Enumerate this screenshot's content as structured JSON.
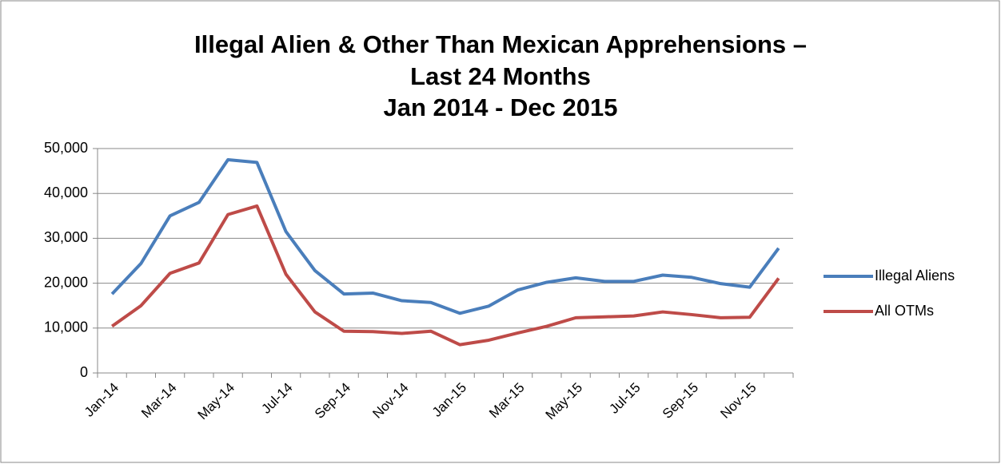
{
  "chart_data": {
    "type": "line",
    "title": [
      "Illegal Alien & Other Than Mexican Apprehensions –",
      "Last 24 Months",
      "Jan 2014 - Dec 2015"
    ],
    "categories": [
      "Jan-14",
      null,
      "Mar-14",
      null,
      "May-14",
      null,
      "Jul-14",
      null,
      "Sep-14",
      null,
      "Nov-14",
      null,
      "Jan-15",
      null,
      "Mar-15",
      null,
      "May-15",
      null,
      "Jul-15",
      null,
      "Sep-15",
      null,
      "Nov-15",
      null
    ],
    "series": [
      {
        "name": "Illegal Aliens",
        "color": "#4a7ebb",
        "values": [
          17600,
          24400,
          35000,
          38000,
          47500,
          46900,
          31500,
          22800,
          17600,
          17800,
          16100,
          15700,
          13300,
          14900,
          18500,
          20200,
          21200,
          20400,
          20400,
          21800,
          21300,
          19900,
          19100,
          27800
        ]
      },
      {
        "name": "All OTMs",
        "color": "#be4b48",
        "values": [
          10400,
          15000,
          22200,
          24500,
          35300,
          37200,
          22000,
          13600,
          9300,
          9200,
          8800,
          9300,
          6300,
          7300,
          8900,
          10400,
          12300,
          12500,
          12700,
          13600,
          13000,
          12300,
          12400,
          21100
        ]
      }
    ],
    "ylim": [
      0,
      50000
    ],
    "yticks": [
      0,
      {
        "value": 10000,
        "label": "10,000"
      },
      {
        "value": 20000,
        "label": "20,000"
      },
      {
        "value": 30000,
        "label": "30,000"
      },
      {
        "value": 40000,
        "label": "40,000"
      },
      {
        "value": 50000,
        "label": "50,000"
      }
    ],
    "grid": true,
    "legend": "right"
  }
}
